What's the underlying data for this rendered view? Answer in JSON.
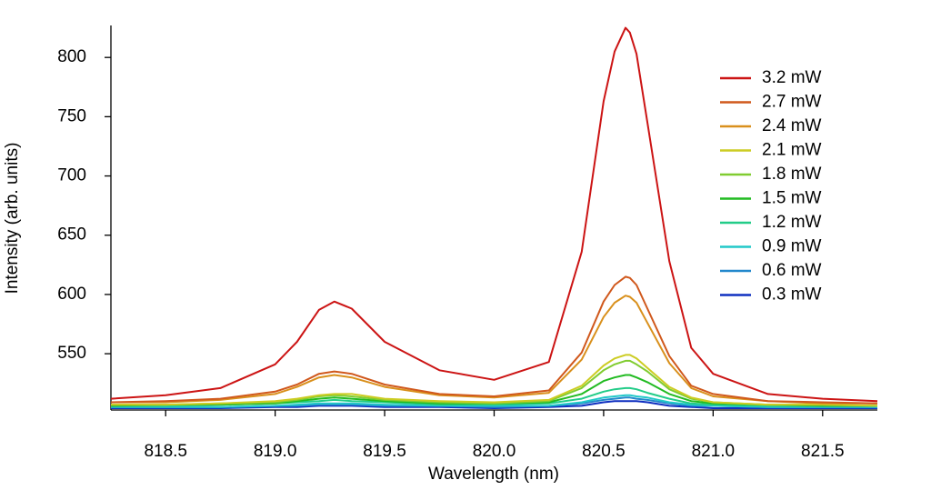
{
  "chart_data": {
    "type": "line",
    "x_label": "Wavelength (nm)",
    "y_label": "Intensity (arb. units)",
    "xlim": [
      818.25,
      821.75
    ],
    "ylim": [
      502.5,
      827
    ],
    "xticks": [
      818.5,
      {
        "value": 819,
        "label": "819.0"
      },
      819.5,
      {
        "value": 820,
        "label": "820.0"
      },
      820.5,
      {
        "value": 821,
        "label": "821.0"
      },
      821.5
    ],
    "yticks": [
      550,
      600,
      650,
      700,
      750,
      800
    ],
    "grid": false,
    "legend": "upper right",
    "x": [
      818.25,
      818.5,
      818.75,
      819.0,
      819.1,
      819.2,
      819.27,
      819.35,
      819.5,
      819.75,
      820.0,
      820.25,
      820.4,
      820.5,
      820.55,
      820.6,
      820.62,
      820.65,
      820.7,
      820.8,
      820.9,
      821.0,
      821.25,
      821.5,
      821.75
    ],
    "series": [
      {
        "name": "3.2 mW",
        "color": "#cc1414",
        "values": [
          512,
          515,
          521,
          541,
          560,
          587,
          594,
          588,
          560,
          536,
          528,
          543,
          636,
          763,
          805,
          825,
          821,
          803,
          745,
          628,
          555,
          533,
          516,
          512,
          510
        ]
      },
      {
        "name": "2.7 mW",
        "color": "#d0581c",
        "values": [
          509,
          510,
          512,
          518,
          524,
          533,
          535,
          533,
          524,
          516,
          514,
          519,
          551,
          594,
          608,
          615,
          614,
          608,
          588,
          548,
          523,
          516,
          510,
          509,
          508
        ]
      },
      {
        "name": "2.4 mW",
        "color": "#d9901c",
        "values": [
          509,
          509,
          511,
          516,
          522,
          530,
          532,
          530,
          522,
          515,
          513,
          517,
          545,
          581,
          593,
          599,
          598,
          593,
          576,
          542,
          521,
          514,
          510,
          508,
          508
        ]
      },
      {
        "name": "2.1 mW",
        "color": "#cccc22",
        "values": [
          507,
          507,
          508,
          510,
          512,
          515,
          516,
          516,
          512,
          510,
          509,
          511,
          523,
          540,
          546,
          549,
          549,
          546,
          538,
          522,
          513,
          509,
          507,
          507,
          506
        ]
      },
      {
        "name": "1.8 mW",
        "color": "#80cc30",
        "values": [
          507,
          507,
          508,
          509,
          511,
          514,
          515,
          514,
          511,
          509,
          508,
          510,
          521,
          536,
          541,
          544,
          544,
          541,
          535,
          520,
          512,
          509,
          507,
          507,
          506
        ]
      },
      {
        "name": "1.5 mW",
        "color": "#22bb22",
        "values": [
          506,
          507,
          507,
          508,
          510,
          512,
          513,
          512,
          510,
          508,
          508,
          509,
          516,
          527,
          530,
          532,
          532,
          530,
          526,
          516,
          510,
          508,
          507,
          506,
          506
        ]
      },
      {
        "name": "1.2 mW",
        "color": "#22cc88",
        "values": [
          506,
          506,
          507,
          508,
          509,
          510,
          511,
          510,
          509,
          507,
          507,
          508,
          512,
          518,
          520,
          521,
          521,
          520,
          517,
          512,
          508,
          507,
          506,
          506,
          506
        ]
      },
      {
        "name": "0.9 mW",
        "color": "#22c8c8",
        "values": [
          505,
          505,
          505,
          506,
          507,
          508,
          508,
          508,
          507,
          506,
          506,
          506,
          509,
          513,
          514,
          515,
          515,
          514,
          513,
          509,
          507,
          506,
          505,
          505,
          505
        ]
      },
      {
        "name": "0.6 mW",
        "color": "#2288cc",
        "values": [
          505,
          505,
          505,
          506,
          506,
          507,
          507,
          507,
          506,
          506,
          505,
          506,
          508,
          511,
          512,
          513,
          513,
          512,
          511,
          508,
          506,
          506,
          505,
          505,
          505
        ]
      },
      {
        "name": "0.3 mW",
        "color": "#1030c0",
        "values": [
          504,
          504,
          504,
          505,
          505,
          506,
          506,
          506,
          505,
          505,
          504,
          505,
          506,
          509,
          510,
          510,
          510,
          510,
          509,
          506,
          505,
          504,
          504,
          504,
          504
        ]
      }
    ]
  }
}
